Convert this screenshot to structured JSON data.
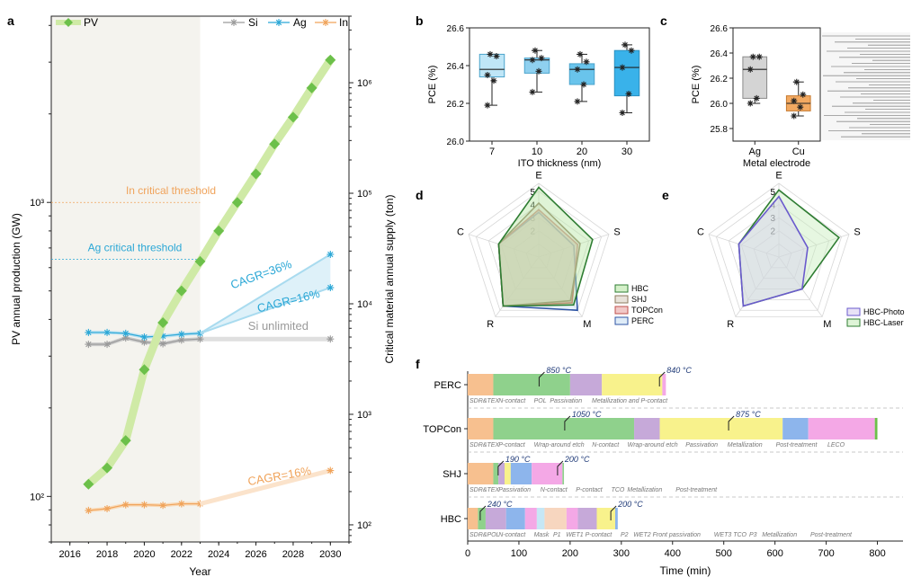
{
  "panel_labels": {
    "a": "a",
    "b": "b",
    "c": "c",
    "d": "d",
    "e": "e",
    "f": "f"
  },
  "colors": {
    "pv": "#6cc04a",
    "pv_line": "#cfeaa6",
    "si": "#9a9a9a",
    "ag": "#2aa7d6",
    "in": "#f0a35a",
    "hbc": "#2e7d32",
    "shj": "#8c7b5e",
    "topcon": "#c0504d",
    "perc": "#2f55a4",
    "photo": "#6a5acd",
    "laser": "#2e7d32"
  },
  "chart_data": [
    {
      "id": "a",
      "type": "line",
      "xlabel": "Year",
      "ylabel": "PV annual production (GW)",
      "y2label": "Critical material annual supply (ton)",
      "xticks": [
        "2016",
        "2018",
        "2020",
        "2022",
        "2024",
        "2026",
        "2028",
        "2030"
      ],
      "yticks": [
        "10²",
        "10³"
      ],
      "y2ticks": [
        "10²",
        "10³",
        "10⁴",
        "10⁵",
        "10⁶"
      ],
      "legend": {
        "pv": "PV",
        "si": "Si",
        "ag": "Ag",
        "in": "In"
      },
      "annotations": {
        "si_unlimited": "Si unlimited",
        "in_threshold": "In critical threshold",
        "ag_threshold": "Ag critical threshold",
        "cagr_ag": "CAGR=36%",
        "cagr_in_ag": "CAGR=16%",
        "cagr_in": "CAGR=16%"
      },
      "xlim": [
        2015,
        2031
      ],
      "ylim_gw": [
        70,
        4300
      ],
      "ylim_ton": [
        70,
        4000000
      ],
      "series": [
        {
          "name": "PV",
          "x": [
            2017,
            2018,
            2019,
            2020,
            2021,
            2022,
            2023,
            2024,
            2025,
            2026,
            2027,
            2028,
            2029,
            2030
          ],
          "values": [
            110,
            125,
            155,
            270,
            390,
            500,
            630,
            800,
            1000,
            1250,
            1580,
            1950,
            2450,
            3050
          ]
        },
        {
          "name": "Si",
          "x": [
            2017,
            2018,
            2019,
            2020,
            2021,
            2022,
            2023,
            2030
          ],
          "values": [
            4300,
            4300,
            4900,
            4500,
            4350,
            4700,
            4800,
            4800
          ]
        },
        {
          "name": "Ag",
          "x": [
            2017,
            2018,
            2019,
            2020,
            2021,
            2022,
            2023
          ],
          "values": [
            5500,
            5500,
            5400,
            5000,
            5100,
            5300,
            5400
          ],
          "projection_high": [
            5400,
            28000
          ],
          "projection_low": [
            5400,
            14000
          ]
        },
        {
          "name": "In",
          "x": [
            2017,
            2018,
            2019,
            2020,
            2021,
            2022,
            2023
          ],
          "values": [
            135,
            140,
            152,
            152,
            150,
            155,
            155
          ],
          "projection": [
            155,
            310
          ]
        }
      ],
      "threshold_in_gw": 1000,
      "threshold_ag_gw": 640
    },
    {
      "id": "b",
      "type": "box",
      "xlabel": "ITO thickness (nm)",
      "ylabel": "PCE (%)",
      "categories": [
        "7",
        "10",
        "20",
        "30"
      ],
      "yticks": [
        "26.0",
        "26.2",
        "26.4",
        "26.6"
      ],
      "ylim": [
        26.0,
        26.6
      ],
      "boxes": [
        {
          "min": 26.19,
          "q1": 26.34,
          "median": 26.38,
          "q3": 26.46,
          "max": 26.46,
          "points": [
            26.46,
            26.45,
            26.35,
            26.32,
            26.19
          ]
        },
        {
          "min": 26.26,
          "q1": 26.36,
          "median": 26.43,
          "q3": 26.44,
          "max": 26.48,
          "points": [
            26.48,
            26.44,
            26.43,
            26.37,
            26.26
          ]
        },
        {
          "min": 26.21,
          "q1": 26.3,
          "median": 26.38,
          "q3": 26.41,
          "max": 26.46,
          "points": [
            26.46,
            26.42,
            26.38,
            26.3,
            26.21
          ]
        },
        {
          "min": 26.15,
          "q1": 26.24,
          "median": 26.39,
          "q3": 26.48,
          "max": 26.51,
          "points": [
            26.51,
            26.48,
            26.39,
            26.25,
            26.15
          ]
        }
      ]
    },
    {
      "id": "c",
      "type": "box",
      "xlabel": "Metal electrode",
      "ylabel": "PCE (%)",
      "categories": [
        "Ag",
        "Cu"
      ],
      "yticks": [
        "25.8",
        "26.0",
        "26.2",
        "26.4",
        "26.6"
      ],
      "ylim": [
        25.7,
        26.6
      ],
      "boxes": [
        {
          "min": 26.0,
          "q1": 26.04,
          "median": 26.27,
          "q3": 26.37,
          "max": 26.37,
          "points": [
            26.37,
            26.37,
            26.27,
            26.04,
            26.0
          ]
        },
        {
          "min": 25.9,
          "q1": 25.94,
          "median": 26.0,
          "q3": 26.06,
          "max": 26.17,
          "points": [
            26.17,
            26.07,
            26.02,
            25.97,
            25.9
          ]
        }
      ]
    },
    {
      "id": "d",
      "type": "radar",
      "axes": [
        "E",
        "S",
        "M",
        "R",
        "C"
      ],
      "ticks": [
        "2",
        "3",
        "4",
        "5"
      ],
      "series": [
        {
          "name": "HBC",
          "values": [
            5.3,
            4.3,
            4.5,
            4.6,
            3.2
          ]
        },
        {
          "name": "SHJ",
          "values": [
            4.1,
            3.3,
            4.1,
            4.6,
            3.2
          ]
        },
        {
          "name": "TOPCon",
          "values": [
            3.6,
            3.1,
            4.3,
            4.6,
            3.2
          ]
        },
        {
          "name": "PERC",
          "values": [
            3.4,
            2.8,
            5.0,
            4.6,
            3.2
          ]
        }
      ]
    },
    {
      "id": "e",
      "type": "radar",
      "axes": [
        "E",
        "S",
        "M",
        "R",
        "C"
      ],
      "ticks": [
        "2",
        "3",
        "4",
        "5"
      ],
      "series": [
        {
          "name": "HBC-Photo",
          "values": [
            4.6,
            2.3,
            3.0,
            4.6,
            3.2
          ]
        },
        {
          "name": "HBC-Laser",
          "values": [
            5.1,
            4.8,
            3.0,
            4.6,
            3.2
          ]
        }
      ]
    },
    {
      "id": "f",
      "type": "bar",
      "xlabel": "Time (min)",
      "xticks": [
        "0",
        "100",
        "200",
        "300",
        "400",
        "500",
        "600",
        "700",
        "800"
      ],
      "xlim": [
        0,
        850
      ],
      "rows": [
        {
          "name": "PERC",
          "segments": [
            {
              "start": 0,
              "end": 50,
              "color": "#f7c08f"
            },
            {
              "start": 50,
              "end": 200,
              "color": "#8fd18c"
            },
            {
              "start": 200,
              "end": 262,
              "color": "#c6a9d9"
            },
            {
              "start": 262,
              "end": 380,
              "color": "#f8f28c"
            },
            {
              "start": 380,
              "end": 387,
              "color": "#f4a8e6"
            }
          ],
          "labels": [
            "SDR&TEX",
            "N-contact",
            "POL",
            "Passivation",
            "Metallization and P-contact"
          ],
          "temps": [
            "850 °C",
            "840 °C"
          ],
          "temp_at": [
            150,
            385
          ]
        },
        {
          "name": "TOPCon",
          "segments": [
            {
              "start": 0,
              "end": 50,
              "color": "#f7c08f"
            },
            {
              "start": 50,
              "end": 325,
              "color": "#8fd18c"
            },
            {
              "start": 325,
              "end": 375,
              "color": "#c6a9d9"
            },
            {
              "start": 375,
              "end": 615,
              "color": "#f8f28c"
            },
            {
              "start": 615,
              "end": 665,
              "color": "#8db5ec"
            },
            {
              "start": 665,
              "end": 795,
              "color": "#f4a8e6"
            },
            {
              "start": 795,
              "end": 800,
              "color": "#6cc04a"
            }
          ],
          "labels": [
            "SDR&TEX",
            "P-contact",
            "Wrap-around etch",
            "N-contact",
            "Wrap-around etch",
            "Passivation",
            "Metallization",
            "Post-treatment",
            "LECO"
          ],
          "temps": [
            "1050 °C",
            "875 °C"
          ],
          "temp_at": [
            200,
            520
          ]
        },
        {
          "name": "SHJ",
          "segments": [
            {
              "start": 0,
              "end": 50,
              "color": "#f7c08f"
            },
            {
              "start": 50,
              "end": 60,
              "color": "#8fd18c"
            },
            {
              "start": 60,
              "end": 72,
              "color": "#c6a9d9"
            },
            {
              "start": 72,
              "end": 84,
              "color": "#f8f28c"
            },
            {
              "start": 84,
              "end": 125,
              "color": "#8db5ec"
            },
            {
              "start": 125,
              "end": 185,
              "color": "#f4a8e6"
            },
            {
              "start": 185,
              "end": 188,
              "color": "#8fd18c"
            }
          ],
          "labels": [
            "SDR&TEX",
            "Passivation",
            "N-contact",
            "P-contact",
            "TCO",
            "Metallization",
            "Post-treatment"
          ],
          "temps": [
            "190 °C",
            "200 °C"
          ],
          "temp_at": [
            70,
            186
          ]
        },
        {
          "name": "HBC",
          "segments": [
            {
              "start": 0,
              "end": 20,
              "color": "#f7c08f"
            },
            {
              "start": 20,
              "end": 35,
              "color": "#8fd18c"
            },
            {
              "start": 35,
              "end": 75,
              "color": "#c6a9d9"
            },
            {
              "start": 75,
              "end": 112,
              "color": "#8db5ec"
            },
            {
              "start": 112,
              "end": 135,
              "color": "#f4a8e6"
            },
            {
              "start": 135,
              "end": 150,
              "color": "#c6e7f5"
            },
            {
              "start": 150,
              "end": 193,
              "color": "#f7d6bf"
            },
            {
              "start": 193,
              "end": 215,
              "color": "#f4a8e6"
            },
            {
              "start": 215,
              "end": 252,
              "color": "#c6a9d9"
            },
            {
              "start": 252,
              "end": 288,
              "color": "#f8f28c"
            },
            {
              "start": 288,
              "end": 293,
              "color": "#8db5ec"
            }
          ],
          "labels": [
            "SDR&POL",
            "N-contact",
            "Mask",
            "P1",
            "WET1",
            "P-contact",
            "P2",
            "WET2",
            "Front passivation",
            "WET3",
            "TCO",
            "P3",
            "Metallization",
            "Post-treatment"
          ],
          "temps": [
            "240 °C",
            "200 °C"
          ],
          "temp_at": [
            35,
            290
          ]
        }
      ]
    }
  ]
}
